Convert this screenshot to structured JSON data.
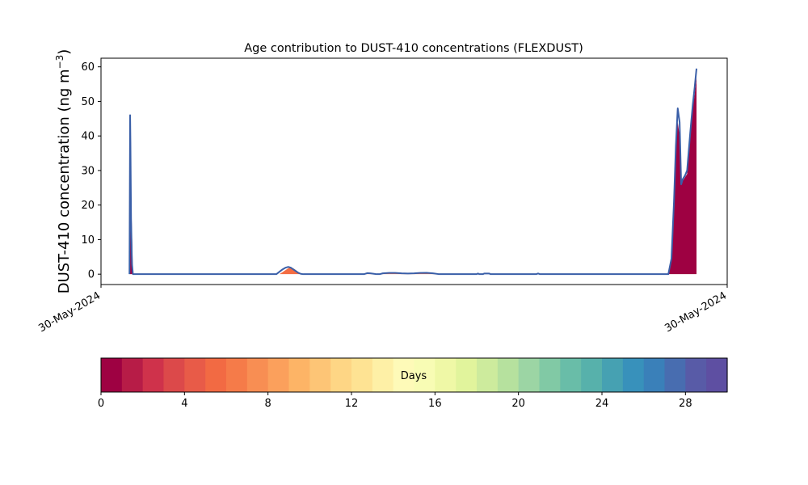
{
  "chart_data": {
    "type": "area",
    "title": "Age contribution to DUST-410 concentrations (FLEXDUST)",
    "ylabel": "DUST-410 concentration (ng m$^{-3}$)",
    "ylabel_main": "DUST-410 concentration (ng m",
    "ylabel_sup": "−3",
    "ylabel_close": ")",
    "ylim": [
      -3,
      62.5
    ],
    "xlim": [
      0,
      1
    ],
    "yticks": [
      0,
      10,
      20,
      30,
      40,
      50,
      60
    ],
    "xtick_labels": [
      "30-May-2024",
      "30-May-2024"
    ],
    "grid": false,
    "series": [
      {
        "age_days": 0,
        "color": "#9e0142",
        "x": [
          0.046,
          0.047,
          0.048,
          0.0495,
          0.051,
          0.053,
          0.055,
          0.906,
          0.911,
          0.915,
          0.918,
          0.921,
          0.924,
          0.9265,
          0.929,
          0.9325,
          0.936,
          0.941,
          0.945,
          0.948,
          0.951
        ],
        "y": [
          0,
          34,
          23,
          12,
          0,
          0,
          0,
          0,
          4,
          20,
          36,
          44,
          40,
          26,
          27,
          28,
          29,
          40,
          48,
          52,
          57
        ]
      },
      {
        "age_days": 9,
        "color": "#f46d43",
        "x": [
          0.285,
          0.29,
          0.295,
          0.299,
          0.303,
          0.307,
          0.311,
          0.315,
          0.319,
          0.323
        ],
        "y": [
          0,
          0.6,
          1.2,
          1.7,
          1.9,
          1.7,
          1.2,
          0.6,
          0.2,
          0
        ]
      },
      {
        "age_days": 13,
        "color": "#f46d43",
        "x": [
          0.42,
          0.425,
          0.43,
          0.436,
          0.44,
          0.445,
          0.45,
          0.46,
          0.47,
          0.48,
          0.49,
          0.5,
          0.51,
          0.52,
          0.53,
          0.54
        ],
        "y": [
          0,
          0.25,
          0.2,
          0.1,
          0,
          0,
          0.2,
          0.3,
          0.3,
          0.2,
          0.15,
          0.2,
          0.3,
          0.35,
          0.2,
          0
        ]
      }
    ],
    "total_line": {
      "color": "#3a5fa8",
      "x": [
        0.0455,
        0.0465,
        0.047,
        0.048,
        0.0495,
        0.051,
        0.053,
        0.28,
        0.285,
        0.29,
        0.295,
        0.299,
        0.303,
        0.307,
        0.311,
        0.315,
        0.319,
        0.323,
        0.42,
        0.425,
        0.43,
        0.436,
        0.44,
        0.445,
        0.45,
        0.46,
        0.47,
        0.48,
        0.49,
        0.5,
        0.51,
        0.52,
        0.53,
        0.54,
        0.6,
        0.602,
        0.604,
        0.61,
        0.612,
        0.62,
        0.622,
        0.695,
        0.698,
        0.701,
        0.906,
        0.911,
        0.915,
        0.918,
        0.921,
        0.924,
        0.9265,
        0.929,
        0.9325,
        0.936,
        0.941,
        0.945,
        0.948,
        0.951
      ],
      "y": [
        0,
        46,
        38,
        16,
        3,
        0,
        0,
        0,
        0.7,
        1.4,
        1.9,
        2.1,
        1.9,
        1.4,
        0.9,
        0.4,
        0.1,
        0,
        0,
        0.3,
        0.25,
        0.1,
        0,
        0,
        0.25,
        0.35,
        0.35,
        0.25,
        0.2,
        0.25,
        0.35,
        0.4,
        0.25,
        0,
        0,
        0.2,
        0,
        0,
        0.2,
        0.2,
        0,
        0,
        0.2,
        0,
        0,
        4.5,
        21,
        37,
        48,
        44,
        26,
        27.5,
        28.5,
        30,
        41,
        49,
        54,
        59.5
      ]
    },
    "colorbar": {
      "label": "Days",
      "min": 0,
      "max": 30,
      "ticks": [
        0,
        4,
        8,
        12,
        16,
        20,
        24,
        28
      ],
      "colors": [
        "#9e0142",
        "#b71c47",
        "#cf324b",
        "#dc494a",
        "#e85b48",
        "#f26a43",
        "#f57b49",
        "#f88e53",
        "#fba05c",
        "#fdb466",
        "#fdc576",
        "#fed685",
        "#fee393",
        "#fef0a6",
        "#fefab8",
        "#f8fcb4",
        "#eff8a6",
        "#e1f49c",
        "#cdeb9d",
        "#b6e19e",
        "#9cd5a4",
        "#81c9a5",
        "#69bda8",
        "#57b1ab",
        "#46a1b2",
        "#3891bb",
        "#3a80b9",
        "#486db0",
        "#585ba7",
        "#5e4fa2"
      ]
    }
  }
}
